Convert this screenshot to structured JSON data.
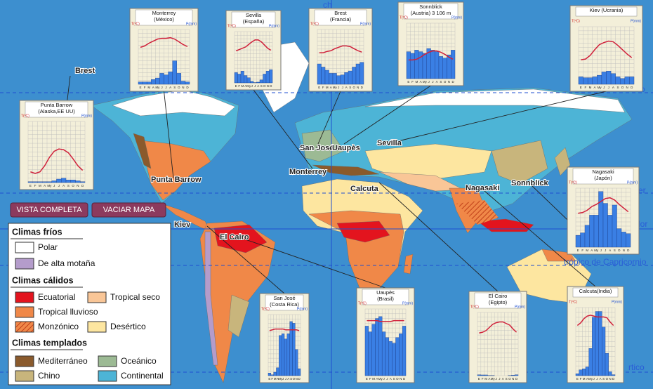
{
  "buttons": [
    "VISTA COMPLETA",
    "VACIAR MAPA"
  ],
  "legend": {
    "sections": [
      {
        "title": "Climas fríos",
        "items": [
          {
            "label": "Polar",
            "color": "#ffffff"
          },
          {
            "label": "De alta motaña",
            "color": "#b49ccb"
          }
        ]
      },
      {
        "title": "Climas cálidos",
        "items": [
          {
            "label": "Ecuatorial",
            "color": "#e3141e"
          },
          {
            "label": "Tropical seco",
            "color": "#f9c697"
          },
          {
            "label": "Tropical lluvioso",
            "color": "#f08848"
          },
          {
            "label": "Monzónico",
            "color": "#f08848",
            "hatched": true
          },
          {
            "label": "Desértico",
            "color": "#fde6a0"
          }
        ]
      },
      {
        "title": "Climas templados",
        "items": [
          {
            "label": "Mediterráneo",
            "color": "#8a5a2c"
          },
          {
            "label": "Oceánico",
            "color": "#9cba94"
          },
          {
            "label": "Chino",
            "color": "#c8b57c"
          },
          {
            "label": "Continental",
            "color": "#4db4d6"
          }
        ]
      }
    ]
  },
  "map_labels": [
    "Punta Barrow",
    "Monterrey",
    "San José",
    "Uaupès",
    "Sevilla",
    "Brest",
    "Sonnblick",
    "Kiev",
    "El Cairo",
    "Calcuta",
    "Nagasaki"
  ],
  "line_labels": [
    "ch",
    "o",
    "cer",
    "dor",
    "trópico de Capricornio",
    "rtico"
  ],
  "months": [
    "E",
    "F",
    "M",
    "A",
    "My",
    "J",
    "J",
    "A",
    "S",
    "O",
    "N",
    "D"
  ],
  "temp_unit": "T(ºC)",
  "precip_unit": "P(mm)",
  "plim": [
    0,
    350
  ],
  "tlim": [
    -40,
    40
  ],
  "climographs": [
    {
      "title": [
        "Monterrey",
        "(México)"
      ],
      "precip": [
        15,
        15,
        15,
        30,
        40,
        70,
        60,
        80,
        150,
        70,
        20,
        15
      ],
      "temp": [
        14,
        16,
        20,
        23,
        26,
        27,
        27,
        28,
        26,
        22,
        18,
        15
      ]
    },
    {
      "title": [
        "Sevilla",
        "(España)"
      ],
      "precip": [
        70,
        60,
        80,
        50,
        35,
        10,
        2,
        5,
        20,
        60,
        80,
        90
      ],
      "temp": [
        10,
        12,
        14,
        16,
        20,
        24,
        27,
        27,
        24,
        19,
        14,
        11
      ]
    },
    {
      "title": [
        "Brest",
        "(Francia)"
      ],
      "precip": [
        130,
        110,
        90,
        70,
        70,
        55,
        60,
        75,
        85,
        110,
        130,
        140
      ],
      "temp": [
        6,
        6,
        8,
        9,
        12,
        14,
        16,
        16,
        15,
        12,
        9,
        7
      ]
    },
    {
      "title": [
        "Sonnblick",
        "(Austria) 3 106 m"
      ],
      "precip": [
        170,
        160,
        180,
        170,
        160,
        190,
        180,
        170,
        140,
        130,
        150,
        180
      ],
      "temp": [
        -13,
        -13,
        -12,
        -9,
        -5,
        -2,
        0,
        0,
        -2,
        -5,
        -9,
        -12
      ]
    },
    {
      "title": [
        "Kiev (Ucrania)"
      ],
      "precip": [
        45,
        40,
        40,
        45,
        55,
        75,
        80,
        65,
        45,
        35,
        45,
        45
      ],
      "temp": [
        -6,
        -5,
        0,
        8,
        15,
        18,
        20,
        19,
        14,
        8,
        2,
        -3
      ]
    },
    {
      "title": [
        "Punta Barrow",
        "(Alaska,EE UU)"
      ],
      "precip": [
        5,
        5,
        5,
        5,
        5,
        10,
        20,
        25,
        15,
        15,
        10,
        5
      ],
      "temp": [
        -26,
        -28,
        -26,
        -18,
        -7,
        1,
        4,
        3,
        -1,
        -9,
        -18,
        -24
      ]
    },
    {
      "title": [
        "Nagasaki",
        "(Japón)"
      ],
      "precip": [
        70,
        85,
        130,
        190,
        190,
        330,
        260,
        190,
        250,
        110,
        90,
        80
      ],
      "temp": [
        6,
        7,
        10,
        15,
        18,
        22,
        26,
        27,
        24,
        18,
        13,
        8
      ]
    },
    {
      "title": [
        "San José",
        "(Costa Rica)"
      ],
      "precip": [
        15,
        5,
        20,
        45,
        230,
        240,
        210,
        240,
        310,
        300,
        150,
        40
      ],
      "temp": [
        19,
        20,
        21,
        21,
        21,
        21,
        20,
        20,
        20,
        20,
        20,
        19
      ]
    },
    {
      "title": [
        "Uaupès",
        "(Brasil)"
      ],
      "precip": [
        260,
        230,
        270,
        300,
        310,
        230,
        200,
        180,
        170,
        200,
        220,
        260
      ],
      "temp": [
        26,
        26,
        26,
        26,
        25,
        25,
        25,
        25,
        26,
        26,
        26,
        26
      ]
    },
    {
      "title": [
        "El Cairo",
        "(Egipto)"
      ],
      "precip": [
        5,
        4,
        4,
        1,
        1,
        0,
        0,
        0,
        0,
        1,
        3,
        5
      ],
      "temp": [
        14,
        15,
        17,
        21,
        25,
        27,
        28,
        28,
        26,
        24,
        19,
        15
      ]
    },
    {
      "title": [
        "Calcuta(India)"
      ],
      "precip": [
        10,
        30,
        35,
        45,
        140,
        300,
        330,
        330,
        250,
        115,
        20,
        5
      ],
      "temp": [
        19,
        22,
        27,
        30,
        31,
        30,
        29,
        29,
        29,
        28,
        23,
        19
      ]
    }
  ]
}
